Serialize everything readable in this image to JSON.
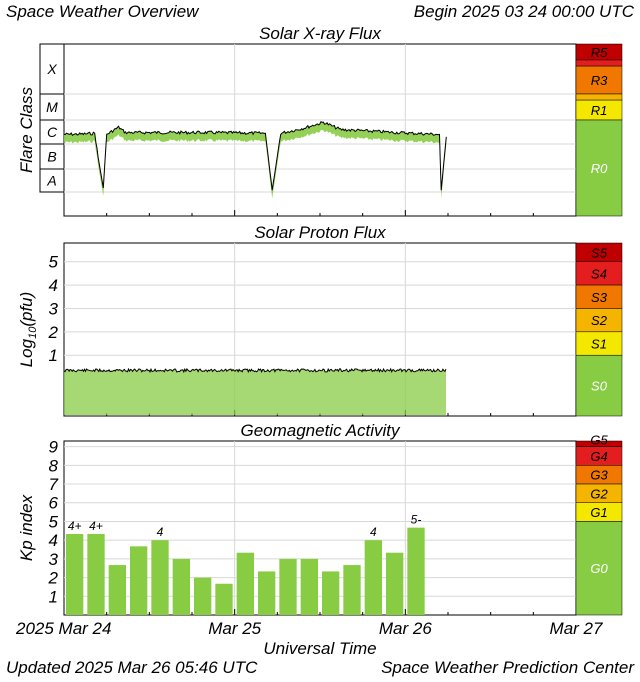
{
  "header": {
    "title": "Space Weather Overview",
    "begin": "Begin 2025 03 24 00:00 UTC"
  },
  "footer": {
    "updated": "Updated 2025 Mar 26 05:46 UTC",
    "center": "Space Weather Prediction Center"
  },
  "colors": {
    "fill_green": "#88cc44",
    "line_black": "#000000",
    "s_green": "#88cc44",
    "s_yellow": "#f5e800",
    "s_lightorange": "#f4b400",
    "s_orange": "#f07800",
    "s_red": "#e41e1e",
    "s_darkred": "#c00000"
  },
  "chart_data": [
    {
      "type": "line",
      "title": "Solar X-ray Flux",
      "ylabel": "Flare Class",
      "y_scale": "log",
      "y_categories": [
        "A",
        "B",
        "C",
        "M",
        "X"
      ],
      "scale_levels": [
        "R5",
        "R3",
        "R1",
        "R0"
      ],
      "x_ticks": [
        "2025 Mar 24",
        "Mar 25",
        "Mar 26",
        "Mar 27"
      ],
      "xlim_days": [
        0,
        3
      ],
      "data_end_day": 2.24,
      "samples": [
        {
          "day": 0.0,
          "class": "C2.5"
        },
        {
          "day": 0.12,
          "class": "C2.6"
        },
        {
          "day": 0.18,
          "class": "C2.8"
        },
        {
          "day": 0.2,
          "class": "B3.0"
        },
        {
          "day": 0.23,
          "class": "A1.5"
        },
        {
          "day": 0.25,
          "class": "C2.5"
        },
        {
          "day": 0.32,
          "class": "C5.0"
        },
        {
          "day": 0.36,
          "class": "C3.0"
        },
        {
          "day": 0.6,
          "class": "C3.0"
        },
        {
          "day": 0.85,
          "class": "C3.0"
        },
        {
          "day": 1.18,
          "class": "C2.8"
        },
        {
          "day": 1.22,
          "class": "A1.2"
        },
        {
          "day": 1.27,
          "class": "C2.8"
        },
        {
          "day": 1.4,
          "class": "C4.5"
        },
        {
          "day": 1.52,
          "class": "C8.0"
        },
        {
          "day": 1.62,
          "class": "C4.0"
        },
        {
          "day": 1.95,
          "class": "C3.0"
        },
        {
          "day": 2.2,
          "class": "C2.5"
        },
        {
          "day": 2.21,
          "class": "A1.2"
        },
        {
          "day": 2.24,
          "class": "C2.0"
        }
      ]
    },
    {
      "type": "line",
      "title": "Solar Proton Flux",
      "ylabel": "Log10(pfu)",
      "y_ticks": [
        1,
        2,
        3,
        4,
        5
      ],
      "ylim": [
        -1.6,
        5.8
      ],
      "scale_levels": [
        "S5",
        "S4",
        "S3",
        "S2",
        "S1",
        "S0"
      ],
      "x_ticks": [
        "2025 Mar 24",
        "Mar 25",
        "Mar 26",
        "Mar 27"
      ],
      "xlim_days": [
        0,
        3
      ],
      "data_end_day": 2.24,
      "approx_level": 0.35
    },
    {
      "type": "bar",
      "title": "Geomagnetic Activity",
      "ylabel": "Kp index",
      "xlabel": "Universal Time",
      "y_ticks": [
        1,
        2,
        3,
        4,
        5,
        6,
        7,
        8,
        9
      ],
      "ylim": [
        0,
        9.3
      ],
      "scale_levels": [
        "G5",
        "G4",
        "G3",
        "G2",
        "G1",
        "G0"
      ],
      "x_ticks": [
        "2025 Mar 24",
        "Mar 25",
        "Mar 26",
        "Mar 27"
      ],
      "values": [
        4.33,
        4.33,
        2.67,
        3.67,
        4.0,
        3.0,
        2.0,
        1.67,
        3.33,
        2.33,
        3.0,
        3.0,
        2.33,
        2.67,
        4.0,
        3.33,
        4.67
      ],
      "value_labels": [
        "4+",
        "4+",
        "",
        "",
        "4",
        "",
        "",
        "",
        "",
        "",
        "",
        "",
        "",
        "",
        "4",
        "",
        "5-"
      ]
    }
  ]
}
